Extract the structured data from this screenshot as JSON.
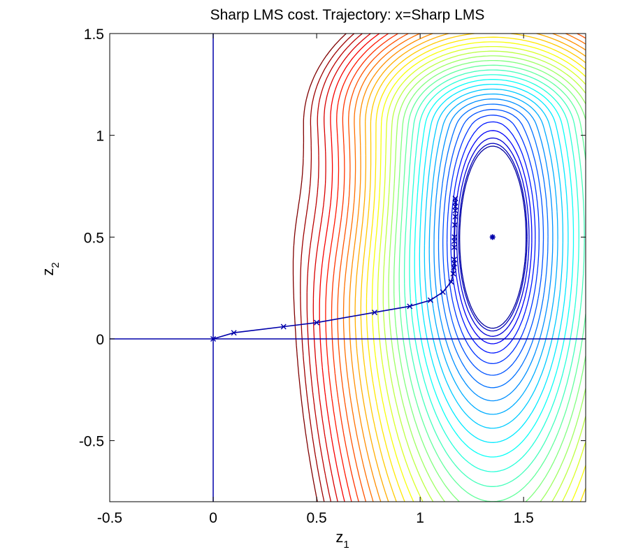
{
  "chart_data": {
    "type": "contour",
    "title": "Sharp LMS cost. Trajectory: x=Sharp LMS",
    "xlabel": {
      "base": "z",
      "sub": "1"
    },
    "ylabel": {
      "base": "z",
      "sub": "2"
    },
    "xlim": [
      -0.5,
      1.8
    ],
    "ylim": [
      -0.8,
      1.5
    ],
    "xticks": [
      -0.5,
      0,
      0.5,
      1,
      1.5
    ],
    "yticks": [
      -0.5,
      0,
      0.5,
      1,
      1.5
    ],
    "xtick_labels": [
      "-0.5",
      "0",
      "0.5",
      "1",
      "1.5"
    ],
    "ytick_labels": [
      "-0.5",
      "0",
      "0.5",
      "1",
      "1.5"
    ],
    "grid": false,
    "colormap": "jet",
    "axis_line_color": "#0000aa",
    "minimum": {
      "x": 1.35,
      "y": 0.5
    },
    "trajectory": {
      "marker": "x",
      "color": "#0000aa",
      "points": [
        [
          0,
          0
        ],
        [
          0.1,
          0.03
        ],
        [
          0.34,
          0.06
        ],
        [
          0.5,
          0.08
        ],
        [
          0.78,
          0.13
        ],
        [
          0.95,
          0.16
        ],
        [
          1.05,
          0.19
        ],
        [
          1.11,
          0.23
        ],
        [
          1.15,
          0.28
        ],
        [
          1.16,
          0.32
        ],
        [
          1.163,
          0.35
        ],
        [
          1.165,
          0.37
        ],
        [
          1.165,
          0.39
        ],
        [
          1.165,
          0.45
        ],
        [
          1.165,
          0.48
        ],
        [
          1.166,
          0.5
        ],
        [
          1.168,
          0.56
        ],
        [
          1.17,
          0.6
        ],
        [
          1.17,
          0.63
        ],
        [
          1.17,
          0.65
        ],
        [
          1.17,
          0.67
        ],
        [
          1.17,
          0.69
        ]
      ]
    }
  }
}
